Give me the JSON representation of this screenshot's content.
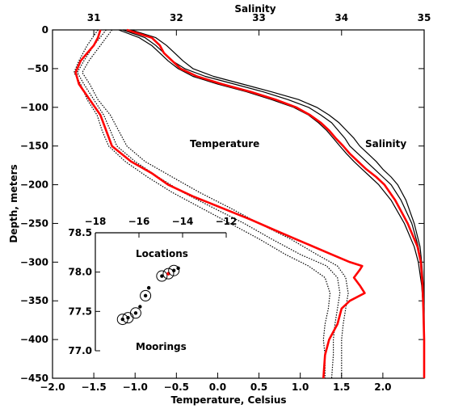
{
  "chart_data": [
    {
      "type": "line",
      "title": "",
      "xlabel_bottom": "Temperature, Celsius",
      "xlabel_top": "Salinity",
      "ylabel": "Depth, meters",
      "annotations": [
        "Temperature",
        "Salinity"
      ],
      "temperature_axis": {
        "range": [
          -2.0,
          2.5
        ],
        "ticks": [
          -2.0,
          -1.5,
          -1.0,
          -0.5,
          0.0,
          0.5,
          1.0,
          1.5,
          2.0
        ],
        "tick_labels": [
          "−2.0",
          "−1.5",
          "−1.0",
          "−0.5",
          "0.0",
          "0.5",
          "1.0",
          "1.5",
          "2.0"
        ]
      },
      "salinity_axis": {
        "range": [
          30.5,
          35.0
        ],
        "ticks": [
          31,
          32,
          33,
          34,
          35
        ],
        "tick_labels": [
          "31",
          "32",
          "33",
          "34",
          "35"
        ]
      },
      "depth_axis": {
        "range": [
          0,
          -450
        ],
        "ticks": [
          0,
          -50,
          -100,
          -150,
          -200,
          -250,
          -300,
          -350,
          -400,
          -450
        ],
        "tick_labels": [
          "0",
          "−50",
          "−100",
          "−150",
          "−200",
          "−250",
          "−300",
          "−350",
          "−400",
          "−450"
        ]
      },
      "series": [
        {
          "kind": "temperature",
          "color": "#ff0000",
          "depth": [
            0,
            -10,
            -20,
            -30,
            -40,
            -55,
            -70,
            -90,
            -110,
            -130,
            -150,
            -170,
            -185,
            -200,
            -215,
            -230,
            -245,
            -260,
            -275,
            -290,
            -300,
            -305,
            -310,
            -320,
            -330,
            -340,
            -350,
            -360,
            -380,
            -400,
            -420,
            -450
          ],
          "values": [
            -1.42,
            -1.45,
            -1.5,
            -1.58,
            -1.66,
            -1.72,
            -1.68,
            -1.55,
            -1.42,
            -1.35,
            -1.28,
            -1.05,
            -0.8,
            -0.6,
            -0.3,
            0.05,
            0.4,
            0.72,
            1.05,
            1.38,
            1.6,
            1.75,
            1.72,
            1.65,
            1.72,
            1.78,
            1.6,
            1.5,
            1.45,
            1.35,
            1.3,
            1.28
          ]
        },
        {
          "kind": "temperature",
          "color": "#000000",
          "depth": [
            0,
            -20,
            -40,
            -55,
            -70,
            -90,
            -110,
            -130,
            -150,
            -170,
            -190,
            -210,
            -230,
            -250,
            -270,
            -290,
            -305,
            -320,
            -340,
            -360,
            -380,
            -400,
            -420,
            -450
          ],
          "values": [
            -1.35,
            -1.5,
            -1.62,
            -1.7,
            -1.62,
            -1.5,
            -1.38,
            -1.3,
            -1.22,
            -1.0,
            -0.72,
            -0.42,
            -0.05,
            0.32,
            0.65,
            1.0,
            1.32,
            1.45,
            1.48,
            1.45,
            1.42,
            1.4,
            1.4,
            1.38
          ]
        },
        {
          "kind": "temperature",
          "color": "#000000",
          "depth": [
            0,
            -20,
            -40,
            -55,
            -70,
            -90,
            -110,
            -130,
            -150,
            -170,
            -190,
            -210,
            -230,
            -250,
            -270,
            -290,
            -305,
            -320,
            -340,
            -360,
            -380,
            -400,
            -420,
            -450
          ],
          "values": [
            -1.28,
            -1.42,
            -1.56,
            -1.64,
            -1.55,
            -1.45,
            -1.3,
            -1.2,
            -1.1,
            -0.88,
            -0.55,
            -0.22,
            0.15,
            0.5,
            0.88,
            1.2,
            1.45,
            1.55,
            1.58,
            1.55,
            1.52,
            1.5,
            1.5,
            1.5
          ]
        },
        {
          "kind": "temperature",
          "color": "#000000",
          "depth": [
            0,
            -20,
            -40,
            -55,
            -70,
            -90,
            -110,
            -130,
            -150,
            -170,
            -190,
            -210,
            -230,
            -250,
            -270,
            -290,
            -305,
            -320,
            -340,
            -360,
            -380,
            -400,
            -420,
            -450
          ],
          "values": [
            -1.45,
            -1.58,
            -1.68,
            -1.74,
            -1.66,
            -1.58,
            -1.46,
            -1.4,
            -1.32,
            -1.12,
            -0.85,
            -0.55,
            -0.2,
            0.15,
            0.5,
            0.82,
            1.1,
            1.3,
            1.36,
            1.34,
            1.3,
            1.28,
            1.3,
            1.3
          ]
        },
        {
          "kind": "salinity",
          "color": "#ff0000",
          "depth": [
            0,
            -10,
            -20,
            -30,
            -40,
            -50,
            -60,
            -70,
            -80,
            -90,
            -100,
            -110,
            -120,
            -130,
            -140,
            -150,
            -160,
            -170,
            -180,
            -190,
            -200,
            -220,
            -250,
            -280,
            -300,
            -330,
            -360,
            -400,
            -450
          ],
          "values": [
            31.4,
            31.7,
            31.8,
            31.85,
            31.95,
            32.05,
            32.25,
            32.55,
            32.9,
            33.2,
            33.45,
            33.62,
            33.75,
            33.85,
            33.93,
            34.02,
            34.1,
            34.2,
            34.3,
            34.42,
            34.52,
            34.65,
            34.8,
            34.92,
            34.96,
            34.98,
            34.99,
            35.0,
            35.0
          ]
        },
        {
          "kind": "salinity",
          "color": "#000000",
          "depth": [
            0,
            -10,
            -20,
            -30,
            -40,
            -50,
            -60,
            -70,
            -80,
            -90,
            -100,
            -110,
            -120,
            -130,
            -140,
            -150,
            -160,
            -170,
            -180,
            -190,
            -200,
            -220,
            -250,
            -280,
            -300,
            -330,
            -360,
            -400,
            -450
          ],
          "values": [
            31.35,
            31.62,
            31.75,
            31.85,
            31.95,
            32.1,
            32.35,
            32.7,
            33.05,
            33.35,
            33.6,
            33.75,
            33.88,
            33.96,
            34.04,
            34.1,
            34.2,
            34.3,
            34.4,
            34.5,
            34.6,
            34.72,
            34.85,
            34.93,
            34.96,
            34.98,
            34.99,
            35.0,
            35.0
          ]
        },
        {
          "kind": "salinity",
          "color": "#000000",
          "depth": [
            0,
            -10,
            -20,
            -30,
            -40,
            -50,
            -60,
            -70,
            -80,
            -90,
            -100,
            -110,
            -120,
            -130,
            -140,
            -150,
            -160,
            -170,
            -180,
            -190,
            -200,
            -220,
            -250,
            -280,
            -300,
            -330,
            -360,
            -400,
            -450
          ],
          "values": [
            31.3,
            31.55,
            31.7,
            31.8,
            31.9,
            32.02,
            32.2,
            32.5,
            32.85,
            33.15,
            33.42,
            33.6,
            33.72,
            33.82,
            33.9,
            33.98,
            34.06,
            34.15,
            34.25,
            34.35,
            34.45,
            34.6,
            34.76,
            34.88,
            34.93,
            34.97,
            34.99,
            35.0,
            35.0
          ]
        },
        {
          "kind": "salinity",
          "color": "#000000",
          "depth": [
            0,
            -10,
            -20,
            -30,
            -40,
            -50,
            -60,
            -70,
            -80,
            -90,
            -100,
            -110,
            -120,
            -130,
            -140,
            -150,
            -160,
            -170,
            -180,
            -190,
            -200,
            -220,
            -250,
            -280,
            -300,
            -330,
            -360,
            -400,
            -450
          ],
          "values": [
            31.45,
            31.75,
            31.88,
            31.98,
            32.08,
            32.2,
            32.45,
            32.8,
            33.15,
            33.48,
            33.7,
            33.85,
            33.97,
            34.06,
            34.15,
            34.22,
            34.32,
            34.42,
            34.5,
            34.6,
            34.68,
            34.78,
            34.88,
            34.95,
            34.97,
            34.99,
            35.0,
            35.0,
            35.0
          ]
        }
      ]
    },
    {
      "type": "scatter",
      "title": "",
      "annotations": [
        "Locations",
        "Moorings"
      ],
      "x_axis": {
        "range": [
          -18,
          -12
        ],
        "ticks": [
          -18,
          -16,
          -14,
          -12
        ],
        "tick_labels": [
          "−18",
          "−16",
          "−14",
          "−12"
        ]
      },
      "y_axis": {
        "range": [
          77.0,
          78.5
        ],
        "ticks": [
          77.0,
          77.5,
          78.0,
          78.5
        ],
        "tick_labels": [
          "77.0",
          "77.5",
          "78.0",
          "78.5"
        ]
      },
      "locations": [
        {
          "x": -16.75,
          "y": 77.4,
          "mooring": true
        },
        {
          "x": -16.5,
          "y": 77.42,
          "mooring": true
        },
        {
          "x": -16.15,
          "y": 77.48,
          "mooring": true
        },
        {
          "x": -15.95,
          "y": 77.56,
          "mooring": false
        },
        {
          "x": -15.7,
          "y": 77.7,
          "mooring": true
        },
        {
          "x": -15.55,
          "y": 77.8,
          "mooring": false
        },
        {
          "x": -14.95,
          "y": 77.95,
          "mooring": true
        },
        {
          "x": -14.65,
          "y": 77.98,
          "mooring": true,
          "highlight": true
        },
        {
          "x": -14.4,
          "y": 78.02,
          "mooring": true
        },
        {
          "x": -14.2,
          "y": 78.05,
          "mooring": false
        }
      ]
    }
  ]
}
